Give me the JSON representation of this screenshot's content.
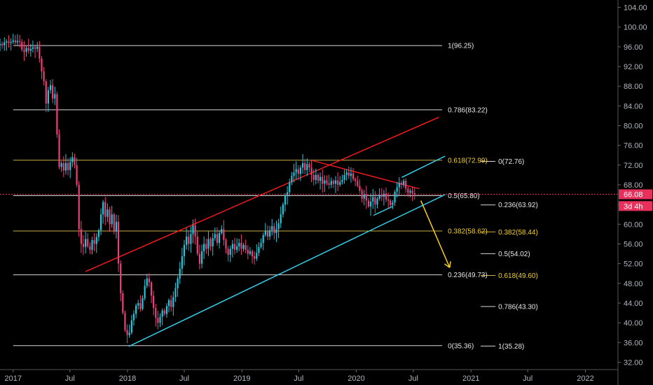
{
  "chart_data": {
    "type": "candlestick",
    "colors": {
      "up": "#26c6da",
      "down": "#ec407a",
      "fib_line": "#d8d8d8",
      "fib_gold": "#c8b045",
      "gold_label": "#f7d11a",
      "channel_red": "#ff1a1a",
      "channel_cyan": "#33d6f0",
      "projection_arrow": "#f7d11a",
      "price_tag": "#e8305c",
      "current_line": "#e8305c"
    },
    "y_axis": {
      "range": [
        30.5,
        105.5
      ],
      "ticks": [
        "104.00",
        "100.00",
        "96.00",
        "92.00",
        "88.00",
        "84.00",
        "80.00",
        "76.00",
        "72.00",
        "68.00",
        "64.00",
        "60.00",
        "56.00",
        "52.00",
        "48.00",
        "44.00",
        "40.00",
        "36.00",
        "32.00"
      ]
    },
    "x_axis": {
      "range": [
        "2016-11-20",
        "2022-04-15"
      ],
      "ticks": [
        {
          "label": "2017",
          "date": "2017-01-01"
        },
        {
          "label": "Jul",
          "date": "2017-07-01"
        },
        {
          "label": "2018",
          "date": "2018-01-01"
        },
        {
          "label": "Jul",
          "date": "2018-07-01"
        },
        {
          "label": "2019",
          "date": "2019-01-01"
        },
        {
          "label": "Jul",
          "date": "2019-07-01"
        },
        {
          "label": "2020",
          "date": "2020-01-01"
        },
        {
          "label": "Jul",
          "date": "2020-07-01"
        },
        {
          "label": "2021",
          "date": "2021-01-01"
        },
        {
          "label": "Jul",
          "date": "2021-07-01"
        },
        {
          "label": "2022",
          "date": "2022-01-01"
        }
      ]
    },
    "fib_retracement_left": [
      {
        "label": "1(96.25)",
        "value": 96.25,
        "gold": false
      },
      {
        "label": "0.786(83.22)",
        "value": 83.22,
        "gold": false
      },
      {
        "label": "0.618(72.99)",
        "value": 72.99,
        "gold": true
      },
      {
        "label": "0.5(65.80)",
        "value": 65.8,
        "gold": false
      },
      {
        "label": "0.382(58.62)",
        "value": 58.62,
        "gold": true
      },
      {
        "label": "0.236(49.73)",
        "value": 49.73,
        "gold": false
      },
      {
        "label": "0(35.36)",
        "value": 35.36,
        "gold": false
      }
    ],
    "fib_extension_right": [
      {
        "label": "0(72.76)",
        "value": 72.76,
        "gold": false
      },
      {
        "label": "0.236(63.92)",
        "value": 63.92,
        "gold": false
      },
      {
        "label": "0.382(58.44)",
        "value": 58.44,
        "gold": true
      },
      {
        "label": "0.5(54.02)",
        "value": 54.02,
        "gold": false
      },
      {
        "label": "0.618(49.60)",
        "value": 49.6,
        "gold": true
      },
      {
        "label": "0.786(43.30)",
        "value": 43.3,
        "gold": false
      },
      {
        "label": "1(35.28)",
        "value": 35.28,
        "gold": false
      }
    ],
    "price_tags": [
      {
        "label": "66.08",
        "value": 66.08
      },
      {
        "label": "3d 4h",
        "value": 64.4
      }
    ],
    "trendlines": [
      {
        "name": "upper-channel",
        "color": "channel_red",
        "from": [
          "2017-08-20",
          50.4
        ],
        "to": [
          "2020-09-20",
          81.7
        ]
      },
      {
        "name": "lower-channel",
        "color": "channel_cyan",
        "from": [
          "2018-01-05",
          35.2
        ],
        "to": [
          "2020-10-10",
          66.0
        ]
      },
      {
        "name": "triangle-top",
        "color": "channel_red",
        "from": [
          "2019-08-15",
          72.9
        ],
        "to": [
          "2020-07-20",
          67.2
        ]
      },
      {
        "name": "wedge-upper",
        "color": "channel_cyan",
        "from": [
          "2020-05-25",
          69.5
        ],
        "to": [
          "2020-10-10",
          73.8
        ]
      },
      {
        "name": "wedge-lower",
        "color": "channel_cyan",
        "from": [
          "2020-02-25",
          61.8
        ],
        "to": [
          "2020-04-25",
          63.6
        ]
      }
    ],
    "projection": {
      "from": [
        "2020-07-25",
        64.8
      ],
      "to": [
        "2020-10-25",
        51.2
      ]
    },
    "candles_weekly_close": [
      [
        "2016-11-20",
        96.6
      ],
      [
        "2016-11-27",
        96.3
      ],
      [
        "2016-12-04",
        96.9
      ],
      [
        "2016-12-11",
        97.1
      ],
      [
        "2016-12-18",
        96.8
      ],
      [
        "2016-12-25",
        97.0
      ],
      [
        "2017-01-01",
        97.3
      ],
      [
        "2017-01-08",
        96.9
      ],
      [
        "2017-01-15",
        97.2
      ],
      [
        "2017-01-22",
        97.0
      ],
      [
        "2017-01-29",
        95.4
      ],
      [
        "2017-02-05",
        95.0
      ],
      [
        "2017-02-12",
        95.8
      ],
      [
        "2017-02-19",
        95.2
      ],
      [
        "2017-02-26",
        95.6
      ],
      [
        "2017-03-05",
        95.9
      ],
      [
        "2017-03-12",
        95.6
      ],
      [
        "2017-03-19",
        96.0
      ],
      [
        "2017-03-26",
        93.6
      ],
      [
        "2017-04-02",
        91.0
      ],
      [
        "2017-04-09",
        89.0
      ],
      [
        "2017-04-16",
        84.5
      ],
      [
        "2017-04-23",
        87.2
      ],
      [
        "2017-04-30",
        88.2
      ],
      [
        "2017-05-07",
        85.5
      ],
      [
        "2017-05-14",
        86.4
      ],
      [
        "2017-05-21",
        78.2
      ],
      [
        "2017-05-28",
        71.6
      ],
      [
        "2017-06-04",
        72.4
      ],
      [
        "2017-06-11",
        70.9
      ],
      [
        "2017-06-18",
        72.4
      ],
      [
        "2017-06-25",
        71.0
      ],
      [
        "2017-07-02",
        72.6
      ],
      [
        "2017-07-09",
        73.6
      ],
      [
        "2017-07-16",
        72.0
      ],
      [
        "2017-07-23",
        68.0
      ],
      [
        "2017-07-30",
        59.0
      ],
      [
        "2017-08-06",
        56.0
      ],
      [
        "2017-08-13",
        55.4
      ],
      [
        "2017-08-20",
        57.0
      ],
      [
        "2017-08-27",
        55.5
      ],
      [
        "2017-09-03",
        54.8
      ],
      [
        "2017-09-10",
        56.8
      ],
      [
        "2017-09-17",
        56.0
      ],
      [
        "2017-09-24",
        57.4
      ],
      [
        "2017-10-01",
        58.8
      ],
      [
        "2017-10-08",
        62.0
      ],
      [
        "2017-10-15",
        64.5
      ],
      [
        "2017-10-22",
        61.5
      ],
      [
        "2017-10-29",
        63.0
      ],
      [
        "2017-11-05",
        60.0
      ],
      [
        "2017-11-12",
        62.0
      ],
      [
        "2017-11-19",
        58.5
      ],
      [
        "2017-11-26",
        60.5
      ],
      [
        "2017-12-03",
        52.0
      ],
      [
        "2017-12-10",
        46.0
      ],
      [
        "2017-12-17",
        42.0
      ],
      [
        "2017-12-24",
        38.5
      ],
      [
        "2017-12-31",
        37.5
      ],
      [
        "2018-01-07",
        38.0
      ],
      [
        "2018-01-14",
        40.5
      ],
      [
        "2018-01-21",
        41.8
      ],
      [
        "2018-01-28",
        43.5
      ],
      [
        "2018-02-04",
        44.0
      ],
      [
        "2018-02-11",
        42.8
      ],
      [
        "2018-02-18",
        45.0
      ],
      [
        "2018-02-25",
        47.5
      ],
      [
        "2018-03-04",
        49.0
      ],
      [
        "2018-03-11",
        48.2
      ],
      [
        "2018-03-18",
        45.5
      ],
      [
        "2018-03-25",
        43.0
      ],
      [
        "2018-04-01",
        41.0
      ],
      [
        "2018-04-08",
        40.0
      ],
      [
        "2018-04-15",
        41.2
      ],
      [
        "2018-04-22",
        42.5
      ],
      [
        "2018-04-29",
        41.8
      ],
      [
        "2018-05-06",
        43.4
      ],
      [
        "2018-05-13",
        44.6
      ],
      [
        "2018-05-20",
        43.2
      ],
      [
        "2018-05-27",
        45.2
      ],
      [
        "2018-06-03",
        47.0
      ],
      [
        "2018-06-10",
        49.0
      ],
      [
        "2018-06-17",
        51.0
      ],
      [
        "2018-06-24",
        53.5
      ],
      [
        "2018-07-01",
        55.8
      ],
      [
        "2018-07-08",
        57.5
      ],
      [
        "2018-07-15",
        56.0
      ],
      [
        "2018-07-22",
        58.0
      ],
      [
        "2018-07-29",
        59.8
      ],
      [
        "2018-08-05",
        57.5
      ],
      [
        "2018-08-12",
        54.0
      ],
      [
        "2018-08-19",
        52.0
      ],
      [
        "2018-08-26",
        54.5
      ],
      [
        "2018-09-02",
        56.0
      ],
      [
        "2018-09-09",
        55.0
      ],
      [
        "2018-09-16",
        57.0
      ],
      [
        "2018-09-23",
        55.5
      ],
      [
        "2018-09-30",
        57.2
      ],
      [
        "2018-10-07",
        58.0
      ],
      [
        "2018-10-14",
        56.2
      ],
      [
        "2018-10-21",
        58.2
      ],
      [
        "2018-10-28",
        59.0
      ],
      [
        "2018-11-04",
        56.8
      ],
      [
        "2018-11-11",
        55.0
      ],
      [
        "2018-11-18",
        53.8
      ],
      [
        "2018-11-25",
        55.0
      ],
      [
        "2018-12-02",
        56.0
      ],
      [
        "2018-12-09",
        54.8
      ],
      [
        "2018-12-16",
        55.5
      ],
      [
        "2018-12-23",
        56.2
      ],
      [
        "2018-12-30",
        55.0
      ],
      [
        "2019-01-06",
        55.8
      ],
      [
        "2019-01-13",
        54.8
      ],
      [
        "2019-01-20",
        54.0
      ],
      [
        "2019-01-27",
        54.5
      ],
      [
        "2019-02-03",
        53.5
      ],
      [
        "2019-02-10",
        53.0
      ],
      [
        "2019-02-17",
        54.2
      ],
      [
        "2019-02-24",
        55.4
      ],
      [
        "2019-03-03",
        56.2
      ],
      [
        "2019-03-10",
        57.8
      ],
      [
        "2019-03-17",
        58.6
      ],
      [
        "2019-03-24",
        57.5
      ],
      [
        "2019-03-31",
        58.8
      ],
      [
        "2019-04-07",
        59.6
      ],
      [
        "2019-04-14",
        58.2
      ],
      [
        "2019-04-21",
        59.0
      ],
      [
        "2019-04-28",
        60.2
      ],
      [
        "2019-05-05",
        62.0
      ],
      [
        "2019-05-12",
        64.0
      ],
      [
        "2019-05-19",
        65.8
      ],
      [
        "2019-05-26",
        66.5
      ],
      [
        "2019-06-02",
        68.5
      ],
      [
        "2019-06-09",
        69.8
      ],
      [
        "2019-06-16",
        70.5
      ],
      [
        "2019-06-23",
        71.2
      ],
      [
        "2019-06-30",
        70.2
      ],
      [
        "2019-07-07",
        71.5
      ],
      [
        "2019-07-14",
        72.4
      ],
      [
        "2019-07-21",
        71.0
      ],
      [
        "2019-07-28",
        72.2
      ],
      [
        "2019-08-04",
        71.5
      ],
      [
        "2019-08-11",
        70.0
      ],
      [
        "2019-08-18",
        69.0
      ],
      [
        "2019-08-25",
        70.0
      ],
      [
        "2019-09-01",
        68.8
      ],
      [
        "2019-09-08",
        69.6
      ],
      [
        "2019-09-15",
        68.2
      ],
      [
        "2019-09-22",
        68.9
      ],
      [
        "2019-09-29",
        68.3
      ],
      [
        "2019-10-06",
        68.0
      ],
      [
        "2019-10-13",
        68.8
      ],
      [
        "2019-10-20",
        68.2
      ],
      [
        "2019-10-27",
        68.9
      ],
      [
        "2019-11-03",
        68.0
      ],
      [
        "2019-11-10",
        68.6
      ],
      [
        "2019-11-17",
        69.0
      ],
      [
        "2019-11-24",
        70.0
      ],
      [
        "2019-12-01",
        70.5
      ],
      [
        "2019-12-08",
        69.8
      ],
      [
        "2019-12-15",
        70.3
      ],
      [
        "2019-12-22",
        69.2
      ],
      [
        "2019-12-29",
        68.8
      ],
      [
        "2020-01-05",
        67.8
      ],
      [
        "2020-01-12",
        66.8
      ],
      [
        "2020-01-19",
        65.2
      ],
      [
        "2020-01-26",
        66.0
      ],
      [
        "2020-02-02",
        64.8
      ],
      [
        "2020-02-09",
        63.6
      ],
      [
        "2020-02-16",
        64.6
      ],
      [
        "2020-02-23",
        65.5
      ],
      [
        "2020-03-01",
        64.0
      ],
      [
        "2020-03-08",
        65.2
      ],
      [
        "2020-03-15",
        66.0
      ],
      [
        "2020-03-22",
        65.6
      ],
      [
        "2020-03-29",
        66.2
      ],
      [
        "2020-04-05",
        65.0
      ],
      [
        "2020-04-12",
        64.8
      ],
      [
        "2020-04-19",
        63.9
      ],
      [
        "2020-04-26",
        64.4
      ],
      [
        "2020-05-03",
        66.6
      ],
      [
        "2020-05-10",
        67.5
      ],
      [
        "2020-05-17",
        68.4
      ],
      [
        "2020-05-24",
        68.0
      ],
      [
        "2020-05-31",
        68.8
      ],
      [
        "2020-06-07",
        67.2
      ],
      [
        "2020-06-14",
        66.4
      ],
      [
        "2020-06-21",
        66.8
      ],
      [
        "2020-06-28",
        66.3
      ],
      [
        "2020-07-05",
        66.08
      ]
    ]
  }
}
